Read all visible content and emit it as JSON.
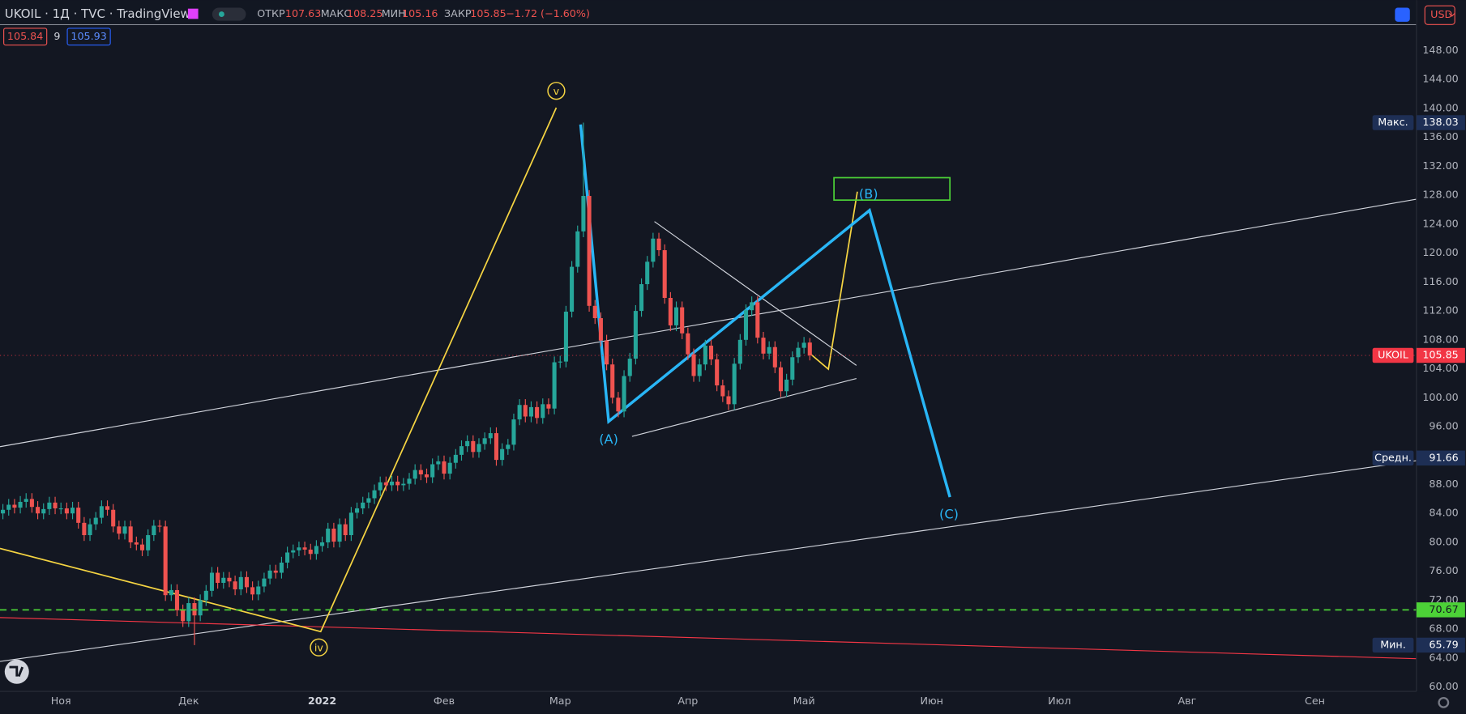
{
  "header": {
    "symbol": "UKOIL · 1Д · TVC · TradingView",
    "o_label": "ОТКР",
    "o": 107.63,
    "h_label": "МАКС",
    "h": 108.25,
    "l_label": "МИН",
    "l": 105.16,
    "c_label": "ЗАКР",
    "c": 105.85,
    "change": "−1.72 (−1.60%)",
    "bid": 105.84,
    "spread": 9,
    "ask": 105.93,
    "currency": "USD"
  },
  "chart_data": {
    "type": "candlestick",
    "up_color": "#26a69a",
    "down_color": "#ef5350",
    "grid": true,
    "xlim": [
      -0.5,
      243.5
    ],
    "ylim": [
      59.4,
      151.6
    ],
    "xticks": [
      {
        "value": 10,
        "label": "Ноя"
      },
      {
        "value": 32,
        "label": "Дек"
      },
      {
        "value": 55,
        "label": "2022"
      },
      {
        "value": 76,
        "label": "Фев"
      },
      {
        "value": 96,
        "label": "Мар"
      },
      {
        "value": 118,
        "label": "Апр"
      },
      {
        "value": 138,
        "label": "Май"
      },
      {
        "value": 160,
        "label": "Июн"
      },
      {
        "value": 182,
        "label": "Июл"
      },
      {
        "value": 204,
        "label": "Авг"
      },
      {
        "value": 226,
        "label": "Сен"
      }
    ],
    "yticks": [
      {
        "value": 60,
        "label": "60.00"
      },
      {
        "value": 64,
        "label": "64.00"
      },
      {
        "value": 68,
        "label": "68.00"
      },
      {
        "value": 72,
        "label": "72.00"
      },
      {
        "value": 76,
        "label": "76.00"
      },
      {
        "value": 80,
        "label": "80.00"
      },
      {
        "value": 84,
        "label": "84.00"
      },
      {
        "value": 88,
        "label": "88.00"
      },
      {
        "value": 96,
        "label": "96.00"
      },
      {
        "value": 100,
        "label": "100.00"
      },
      {
        "value": 104,
        "label": "104.00"
      },
      {
        "value": 108,
        "label": "108.00"
      },
      {
        "value": 112,
        "label": "112.00"
      },
      {
        "value": 116,
        "label": "116.00"
      },
      {
        "value": 120,
        "label": "120.00"
      },
      {
        "value": 124,
        "label": "124.00"
      },
      {
        "value": 128,
        "label": "128.00"
      },
      {
        "value": 132,
        "label": "132.00"
      },
      {
        "value": 136,
        "label": "136.00"
      },
      {
        "value": 140,
        "label": "140.00"
      },
      {
        "value": 144,
        "label": "144.00"
      },
      {
        "value": 148,
        "label": "148.00"
      }
    ],
    "open": [
      84.0,
      84.5,
      85.2,
      84.8,
      85.6,
      86.0,
      84.9,
      84.0,
      84.6,
      85.5,
      84.7,
      84.7,
      84.0,
      84.8,
      82.7,
      81.0,
      82.5,
      83.4,
      85.0,
      84.5,
      82.2,
      81.2,
      82.2,
      80.0,
      79.7,
      78.9,
      81.0,
      82.3,
      82.2,
      72.7,
      73.4,
      70.6,
      69.1,
      71.6,
      69.9,
      72.0,
      73.3,
      75.8,
      74.4,
      75.1,
      74.6,
      73.5,
      75.2,
      73.8,
      72.8,
      73.9,
      75.0,
      76.1,
      75.8,
      77.2,
      78.6,
      78.9,
      79.3,
      79.0,
      78.4,
      79.5,
      80.0,
      81.9,
      80.1,
      82.5,
      81.0,
      84.1,
      84.7,
      85.5,
      86.1,
      87.2,
      88.3,
      87.9,
      88.4,
      87.9,
      88.1,
      88.8,
      90.0,
      89.4,
      89.0,
      90.8,
      91.2,
      89.5,
      91.0,
      92.1,
      93.3,
      94.0,
      92.5,
      93.6,
      94.4,
      95.1,
      91.4,
      92.9,
      93.5,
      97.0,
      99.0,
      97.4,
      98.7,
      97.2,
      99.1,
      98.5,
      104.9,
      105.0,
      111.9,
      118.1,
      123.0,
      127.9,
      112.7,
      111.0,
      107.9,
      104.6,
      100.0,
      98.1,
      103.0,
      105.4,
      112.0,
      115.7,
      118.8,
      122.0,
      120.4,
      113.8,
      110.0,
      112.5,
      108.9,
      106.0,
      103.0,
      104.6,
      107.2,
      105.3,
      101.7,
      100.2,
      99.1,
      104.7,
      108.0,
      112.1,
      113.2,
      108.3,
      106.1,
      107.0,
      104.2,
      100.9,
      102.5,
      105.6,
      106.9,
      107.63
    ],
    "high": [
      85.3,
      86.0,
      86.0,
      86.4,
      86.8,
      86.8,
      85.7,
      85.4,
      86.3,
      86.3,
      85.5,
      85.5,
      85.6,
      85.6,
      83.5,
      83.3,
      84.2,
      85.8,
      85.8,
      85.3,
      83.0,
      83.0,
      83.0,
      80.8,
      80.5,
      81.8,
      83.1,
      83.1,
      83.0,
      74.2,
      74.2,
      71.4,
      72.4,
      72.4,
      72.8,
      74.1,
      76.6,
      76.6,
      75.9,
      75.9,
      75.4,
      76.0,
      76.0,
      74.6,
      74.7,
      75.8,
      76.9,
      76.9,
      78.0,
      79.4,
      79.7,
      80.1,
      80.1,
      79.8,
      80.3,
      80.8,
      82.7,
      82.7,
      83.3,
      83.3,
      84.9,
      85.5,
      86.3,
      86.9,
      88.0,
      89.1,
      89.1,
      89.2,
      89.2,
      88.9,
      89.6,
      90.8,
      90.8,
      90.2,
      91.6,
      92.0,
      92.0,
      91.8,
      92.9,
      94.1,
      94.8,
      94.8,
      94.4,
      95.2,
      95.9,
      95.9,
      93.7,
      94.3,
      97.8,
      99.8,
      99.8,
      99.5,
      99.5,
      99.9,
      99.9,
      105.7,
      105.8,
      112.7,
      118.9,
      123.8,
      138.03,
      128.7,
      113.5,
      111.8,
      108.7,
      105.4,
      100.8,
      103.8,
      106.2,
      112.8,
      116.5,
      119.6,
      122.8,
      122.8,
      121.2,
      114.6,
      113.3,
      113.3,
      109.7,
      106.8,
      105.4,
      108.0,
      108.0,
      106.1,
      102.5,
      101.0,
      105.5,
      108.8,
      112.9,
      114.0,
      114.0,
      109.1,
      107.8,
      107.8,
      105.0,
      103.3,
      106.4,
      107.7,
      108.4,
      108.25
    ],
    "low": [
      83.2,
      83.7,
      84.0,
      84.0,
      84.8,
      84.1,
      83.2,
      83.2,
      83.8,
      83.9,
      83.9,
      83.2,
      83.2,
      81.9,
      80.2,
      80.2,
      81.7,
      82.6,
      83.7,
      81.4,
      80.4,
      80.4,
      79.2,
      78.9,
      78.1,
      78.1,
      80.2,
      81.4,
      71.9,
      71.9,
      69.8,
      68.3,
      68.3,
      65.79,
      69.1,
      71.2,
      72.5,
      73.6,
      73.6,
      73.8,
      72.7,
      72.7,
      73.0,
      72.0,
      72.0,
      73.1,
      74.2,
      75.0,
      75.0,
      76.4,
      77.8,
      78.1,
      78.2,
      77.6,
      77.6,
      78.7,
      79.2,
      79.3,
      79.3,
      80.2,
      80.2,
      83.3,
      83.9,
      84.7,
      85.3,
      86.4,
      87.1,
      87.1,
      87.1,
      87.1,
      87.3,
      88.0,
      88.6,
      88.2,
      88.2,
      90.0,
      88.7,
      88.7,
      90.2,
      91.3,
      92.5,
      91.7,
      91.7,
      92.8,
      93.6,
      90.6,
      90.6,
      92.1,
      92.7,
      96.2,
      96.6,
      96.6,
      96.4,
      96.4,
      97.7,
      97.7,
      104.1,
      104.2,
      111.1,
      117.3,
      122.2,
      111.9,
      110.2,
      107.1,
      103.8,
      99.2,
      97.3,
      97.3,
      102.2,
      104.6,
      111.2,
      114.9,
      118.0,
      119.6,
      113.0,
      109.2,
      109.2,
      108.1,
      105.2,
      102.2,
      102.2,
      103.8,
      104.5,
      100.9,
      99.4,
      98.3,
      98.3,
      103.9,
      107.2,
      111.3,
      107.5,
      105.3,
      105.3,
      103.4,
      100.1,
      100.1,
      101.7,
      104.8,
      106.1,
      105.16
    ],
    "close": [
      84.5,
      85.2,
      84.8,
      85.6,
      86.0,
      84.9,
      84.0,
      84.6,
      85.5,
      84.7,
      84.7,
      84.0,
      84.8,
      82.7,
      81.0,
      82.5,
      83.4,
      85.0,
      84.5,
      82.2,
      81.2,
      82.2,
      80.0,
      79.7,
      78.9,
      81.0,
      82.3,
      82.2,
      72.7,
      73.4,
      70.6,
      69.1,
      71.6,
      69.9,
      72.0,
      73.3,
      75.8,
      74.4,
      75.1,
      74.6,
      73.5,
      75.2,
      73.8,
      72.8,
      73.9,
      75.0,
      76.1,
      75.8,
      77.2,
      78.6,
      78.9,
      79.3,
      79.0,
      78.4,
      79.5,
      80.0,
      81.9,
      80.1,
      82.5,
      81.0,
      84.1,
      84.7,
      85.5,
      86.1,
      87.2,
      88.3,
      87.9,
      88.4,
      87.9,
      88.1,
      88.8,
      90.0,
      89.4,
      89.0,
      90.8,
      91.2,
      89.5,
      91.0,
      92.1,
      93.3,
      94.0,
      92.5,
      93.6,
      94.4,
      95.1,
      91.4,
      92.9,
      93.5,
      97.0,
      99.0,
      97.4,
      98.7,
      97.2,
      99.1,
      98.5,
      104.9,
      105.0,
      111.9,
      118.1,
      123.0,
      127.9,
      112.7,
      111.0,
      107.9,
      104.6,
      100.0,
      98.1,
      103.0,
      105.4,
      112.0,
      115.7,
      118.8,
      122.0,
      120.4,
      113.8,
      110.0,
      112.5,
      108.9,
      106.0,
      103.0,
      104.6,
      107.2,
      105.3,
      101.7,
      100.2,
      99.1,
      104.7,
      108.0,
      112.1,
      113.2,
      108.3,
      106.1,
      107.0,
      104.2,
      100.9,
      102.5,
      105.6,
      106.9,
      107.6,
      105.85
    ],
    "price_labels": [
      {
        "label": "Макс.",
        "value": 138.03,
        "color": "#1e2f55"
      },
      {
        "label": "UKOIL",
        "value": 105.85,
        "color": "#f23645"
      },
      {
        "label": "Средн.",
        "value": 91.66,
        "color": "#1e2f55"
      },
      {
        "value": 70.67,
        "color": "#4cd137"
      },
      {
        "label": "Мин.",
        "value": 65.79,
        "color": "#1e2f55"
      }
    ],
    "annotations": [
      "v",
      "iv",
      "(A)",
      "(B)",
      "(C)"
    ]
  }
}
